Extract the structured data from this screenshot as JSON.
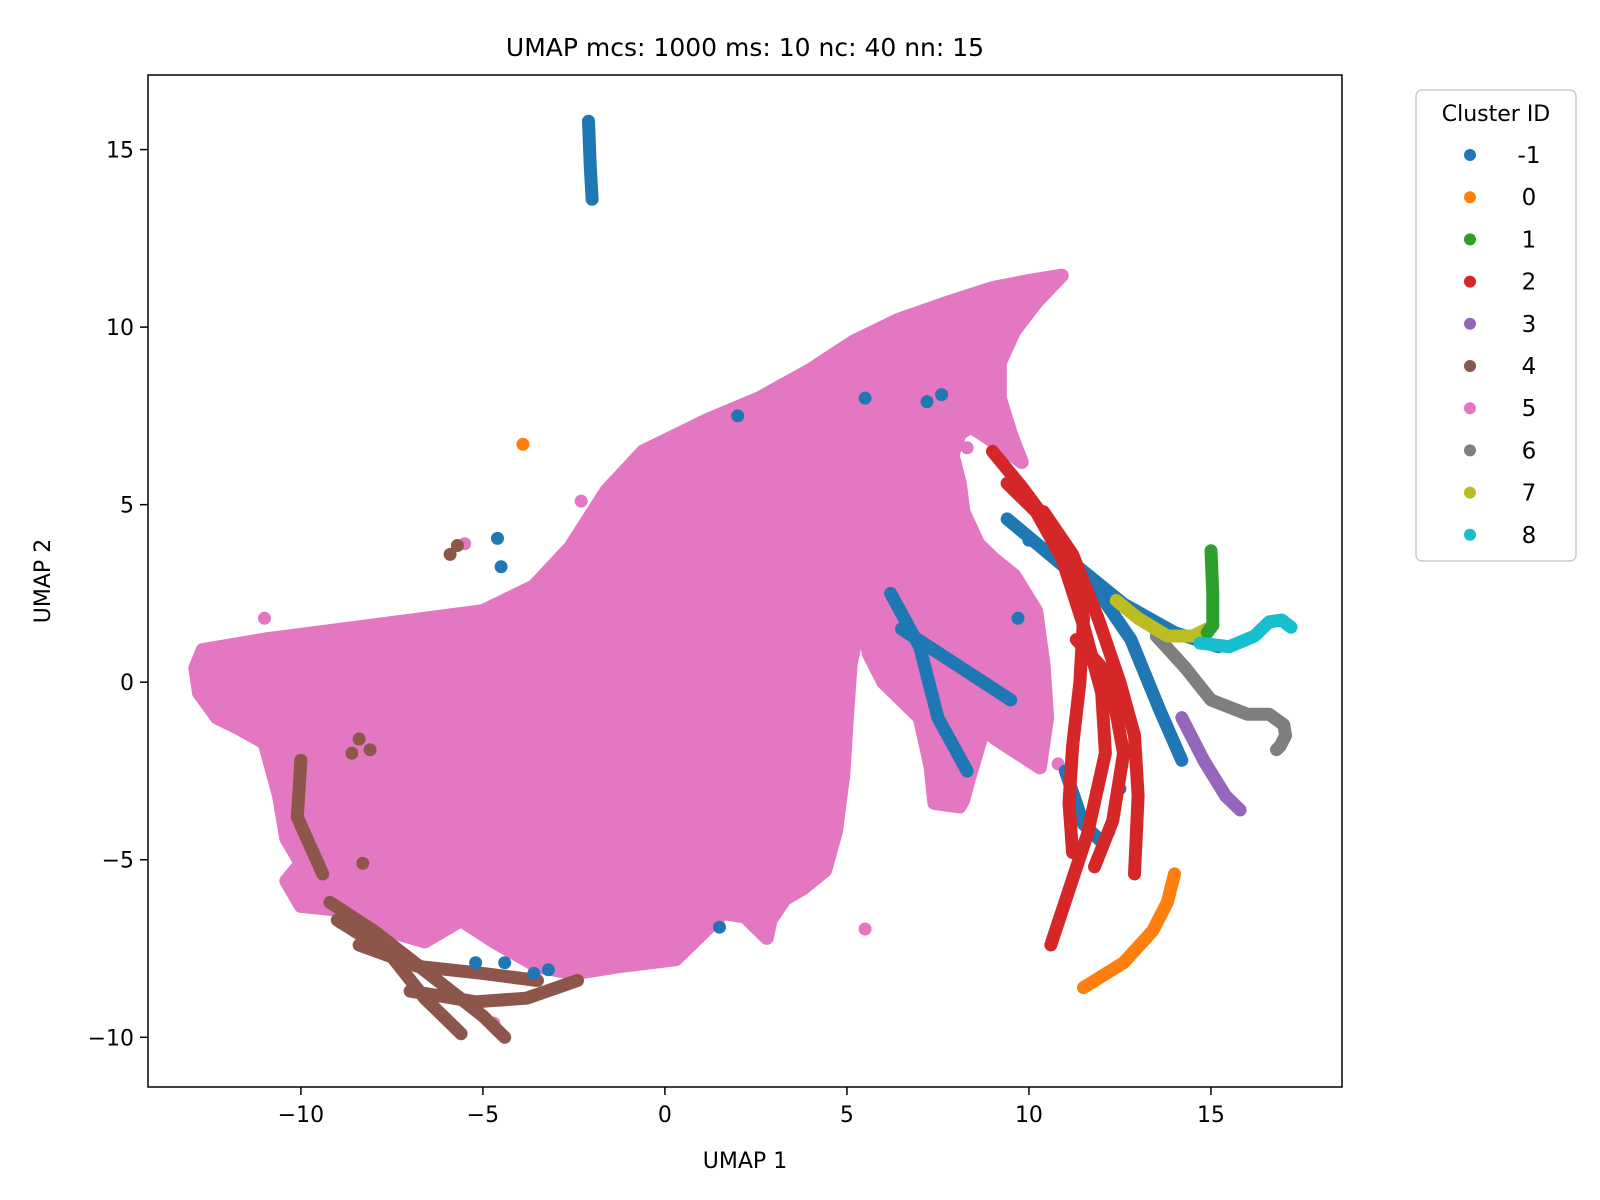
{
  "chart_data": {
    "type": "scatter",
    "title": "UMAP mcs: 1000 ms: 10 nc: 40 nn: 15",
    "xlabel": "UMAP 1",
    "ylabel": "UMAP 2",
    "xlim": [
      -14.2,
      18.6
    ],
    "ylim": [
      -11.4,
      17.1
    ],
    "xticks": [
      -10,
      -5,
      0,
      5,
      10,
      15
    ],
    "yticks": [
      -10,
      -5,
      0,
      5,
      10,
      15
    ],
    "xtick_labels": [
      "−10",
      "−5",
      "0",
      "5",
      "10",
      "15"
    ],
    "ytick_labels": [
      "−10",
      "−5",
      "0",
      "5",
      "10",
      "15"
    ],
    "grid": false,
    "legend": {
      "title": "Cluster ID",
      "placement": "outside-top-right"
    },
    "series": [
      {
        "name": "-1",
        "color": "#1f77b4",
        "paths": [
          [
            [
              -2.1,
              15.8
            ],
            [
              -2.05,
              14.5
            ],
            [
              -2.0,
              13.6
            ]
          ],
          [
            [
              9.4,
              4.6
            ],
            [
              10.8,
              3.4
            ],
            [
              12.0,
              2.4
            ],
            [
              12.8,
              1.2
            ],
            [
              13.6,
              -0.8
            ],
            [
              14.2,
              -2.2
            ]
          ],
          [
            [
              11.4,
              3.2
            ],
            [
              12.6,
              2.2
            ],
            [
              14.0,
              1.4
            ],
            [
              15.2,
              1.0
            ]
          ],
          [
            [
              11.0,
              -2.5
            ],
            [
              11.5,
              -4.0
            ],
            [
              12.0,
              -4.5
            ]
          ],
          [
            [
              6.2,
              2.5
            ],
            [
              7.0,
              1.0
            ],
            [
              7.5,
              -1.0
            ],
            [
              8.3,
              -2.5
            ]
          ],
          [
            [
              6.5,
              1.5
            ],
            [
              8.0,
              0.5
            ],
            [
              9.5,
              -0.5
            ]
          ]
        ],
        "points": [
          [
            -4.6,
            4.05
          ],
          [
            -4.5,
            3.25
          ],
          [
            2.0,
            7.5
          ],
          [
            1.5,
            -6.9
          ],
          [
            5.5,
            8.0
          ],
          [
            -5.2,
            -7.9
          ],
          [
            -4.4,
            -7.9
          ],
          [
            -3.2,
            -8.1
          ],
          [
            10.0,
            4.0
          ],
          [
            9.7,
            1.8
          ],
          [
            12.5,
            -3.0
          ],
          [
            12.2,
            -4.2
          ],
          [
            -3.6,
            -8.2
          ],
          [
            7.2,
            7.9
          ],
          [
            7.6,
            8.1
          ]
        ]
      },
      {
        "name": "0",
        "color": "#ff7f0e",
        "paths": [
          [
            [
              11.5,
              -8.6
            ],
            [
              12.6,
              -7.9
            ],
            [
              13.4,
              -7.0
            ],
            [
              13.8,
              -6.2
            ],
            [
              14.0,
              -5.4
            ]
          ]
        ],
        "points": [
          [
            -3.9,
            6.7
          ]
        ]
      },
      {
        "name": "1",
        "color": "#2ca02c",
        "paths": [
          [
            [
              15.0,
              3.7
            ],
            [
              15.05,
              2.5
            ],
            [
              15.05,
              1.6
            ],
            [
              14.9,
              1.4
            ]
          ]
        ],
        "points": []
      },
      {
        "name": "2",
        "color": "#d62728",
        "paths": [
          [
            [
              9.0,
              6.5
            ],
            [
              9.8,
              5.5
            ],
            [
              10.6,
              4.4
            ],
            [
              11.2,
              3.2
            ],
            [
              11.5,
              1.8
            ],
            [
              11.4,
              0.0
            ],
            [
              11.2,
              -1.8
            ],
            [
              11.1,
              -3.4
            ],
            [
              11.2,
              -4.8
            ]
          ],
          [
            [
              9.4,
              5.6
            ],
            [
              10.2,
              4.8
            ],
            [
              10.9,
              3.5
            ],
            [
              11.5,
              1.6
            ],
            [
              12.0,
              -0.3
            ],
            [
              12.1,
              -2.0
            ],
            [
              11.6,
              -4.3
            ],
            [
              10.6,
              -7.4
            ]
          ],
          [
            [
              10.4,
              4.8
            ],
            [
              11.2,
              3.6
            ],
            [
              11.9,
              1.8
            ],
            [
              12.5,
              0.0
            ],
            [
              12.9,
              -1.5
            ],
            [
              13.0,
              -3.2
            ],
            [
              12.9,
              -5.4
            ]
          ],
          [
            [
              11.3,
              1.2
            ],
            [
              12.2,
              0.2
            ],
            [
              12.6,
              -2.0
            ],
            [
              12.3,
              -3.9
            ],
            [
              11.8,
              -5.2
            ]
          ]
        ],
        "points": []
      },
      {
        "name": "3",
        "color": "#9467bd",
        "paths": [
          [
            [
              14.2,
              -1.0
            ],
            [
              14.8,
              -2.2
            ],
            [
              15.4,
              -3.2
            ],
            [
              15.8,
              -3.6
            ]
          ]
        ],
        "points": []
      },
      {
        "name": "4",
        "color": "#8c564b",
        "paths": [
          [
            [
              -10.0,
              -2.2
            ],
            [
              -10.1,
              -3.8
            ],
            [
              -9.4,
              -5.4
            ]
          ],
          [
            [
              -9.2,
              -6.2
            ],
            [
              -8.0,
              -7.0
            ],
            [
              -6.5,
              -8.2
            ],
            [
              -5.0,
              -9.4
            ],
            [
              -4.4,
              -10.0
            ]
          ],
          [
            [
              -9.0,
              -6.7
            ],
            [
              -7.6,
              -7.6
            ],
            [
              -6.6,
              -8.9
            ],
            [
              -5.6,
              -9.9
            ]
          ],
          [
            [
              -7.0,
              -8.7
            ],
            [
              -5.2,
              -9.0
            ],
            [
              -3.8,
              -8.9
            ],
            [
              -2.4,
              -8.4
            ]
          ],
          [
            [
              -8.4,
              -7.4
            ],
            [
              -6.8,
              -8.0
            ],
            [
              -5.0,
              -8.2
            ],
            [
              -3.5,
              -8.4
            ]
          ]
        ],
        "points": [
          [
            -5.9,
            3.6
          ],
          [
            -5.7,
            3.85
          ],
          [
            -8.4,
            -1.6
          ],
          [
            -8.1,
            -1.9
          ],
          [
            -8.6,
            -2.0
          ],
          [
            -8.3,
            -5.1
          ]
        ]
      },
      {
        "name": "5",
        "color": "#e377c2",
        "paths": [],
        "points": [
          [
            -2.3,
            5.1
          ],
          [
            -11.0,
            1.8
          ],
          [
            -5.5,
            3.9
          ],
          [
            5.5,
            -6.95
          ],
          [
            8.3,
            6.6
          ],
          [
            10.3,
            -2.2
          ],
          [
            10.8,
            -2.3
          ],
          [
            -10.2,
            -5.5
          ],
          [
            -4.7,
            -9.6
          ],
          [
            2.8,
            -7.0
          ]
        ],
        "regions": [
          [
            [
              -12.7,
              0.9
            ],
            [
              -11.0,
              1.2
            ],
            [
              -8.0,
              1.6
            ],
            [
              -5.0,
              2.0
            ],
            [
              -3.6,
              2.7
            ],
            [
              -2.6,
              3.8
            ],
            [
              -1.6,
              5.4
            ],
            [
              -0.6,
              6.5
            ],
            [
              1.2,
              7.4
            ],
            [
              2.6,
              8.0
            ],
            [
              4.0,
              8.8
            ],
            [
              5.2,
              9.6
            ],
            [
              6.4,
              10.2
            ],
            [
              7.8,
              10.7
            ],
            [
              9.0,
              11.1
            ],
            [
              10.0,
              11.3
            ],
            [
              10.9,
              11.45
            ],
            [
              10.2,
              10.7
            ],
            [
              9.6,
              9.9
            ],
            [
              9.2,
              9.0
            ],
            [
              9.2,
              8.0
            ],
            [
              9.5,
              7.0
            ],
            [
              9.8,
              6.2
            ],
            [
              9.0,
              6.8
            ],
            [
              8.4,
              7.2
            ],
            [
              8.1,
              7.0
            ],
            [
              7.9,
              6.4
            ],
            [
              8.1,
              5.6
            ],
            [
              8.2,
              4.8
            ],
            [
              8.6,
              3.9
            ],
            [
              9.0,
              3.5
            ],
            [
              9.6,
              3.0
            ],
            [
              10.2,
              2.0
            ],
            [
              10.4,
              0.5
            ],
            [
              10.5,
              -1.0
            ],
            [
              10.3,
              -2.4
            ],
            [
              9.4,
              -1.8
            ],
            [
              9.1,
              -1.6
            ],
            [
              8.6,
              -1.2
            ],
            [
              8.7,
              -1.5
            ],
            [
              8.3,
              -2.9
            ],
            [
              8.2,
              -3.3
            ],
            [
              8.1,
              -3.5
            ],
            [
              7.4,
              -3.4
            ],
            [
              7.3,
              -2.4
            ],
            [
              7.0,
              -1.0
            ],
            [
              6.6,
              -0.6
            ],
            [
              6.0,
              0.0
            ],
            [
              5.6,
              0.8
            ],
            [
              5.4,
              2.0
            ],
            [
              5.1,
              0.5
            ],
            [
              5.0,
              -1.0
            ],
            [
              4.9,
              -2.6
            ],
            [
              4.7,
              -4.2
            ],
            [
              4.4,
              -5.3
            ],
            [
              3.8,
              -5.8
            ],
            [
              3.3,
              -6.1
            ],
            [
              2.9,
              -6.7
            ],
            [
              2.8,
              -7.2
            ],
            [
              2.2,
              -6.6
            ],
            [
              1.6,
              -6.5
            ],
            [
              0.9,
              -7.2
            ],
            [
              0.3,
              -7.8
            ],
            [
              -1.3,
              -8.0
            ],
            [
              -2.5,
              -8.2
            ],
            [
              -3.5,
              -8.0
            ],
            [
              -4.7,
              -7.3
            ],
            [
              -5.6,
              -6.7
            ],
            [
              -6.6,
              -7.3
            ],
            [
              -7.6,
              -7.0
            ],
            [
              -9.0,
              -6.4
            ],
            [
              -10.0,
              -6.3
            ],
            [
              -10.4,
              -5.6
            ],
            [
              -10.0,
              -5.1
            ],
            [
              -10.4,
              -4.4
            ],
            [
              -10.6,
              -3.2
            ],
            [
              -11.0,
              -1.7
            ],
            [
              -11.7,
              -1.3
            ],
            [
              -12.3,
              -1.0
            ],
            [
              -12.8,
              -0.3
            ],
            [
              -12.9,
              0.4
            ]
          ]
        ]
      },
      {
        "name": "6",
        "color": "#7f7f7f",
        "paths": [
          [
            [
              13.5,
              1.3
            ],
            [
              14.3,
              0.4
            ],
            [
              15.0,
              -0.5
            ],
            [
              16.0,
              -0.9
            ],
            [
              16.6,
              -0.9
            ],
            [
              17.0,
              -1.2
            ],
            [
              17.05,
              -1.5
            ],
            [
              16.9,
              -1.8
            ],
            [
              16.8,
              -1.9
            ]
          ]
        ],
        "points": []
      },
      {
        "name": "7",
        "color": "#bcbd22",
        "paths": [
          [
            [
              12.4,
              2.3
            ],
            [
              13.0,
              1.8
            ],
            [
              13.8,
              1.3
            ],
            [
              14.5,
              1.3
            ],
            [
              14.9,
              1.5
            ]
          ]
        ],
        "points": []
      },
      {
        "name": "8",
        "color": "#17becf",
        "paths": [
          [
            [
              14.7,
              1.1
            ],
            [
              15.5,
              1.0
            ],
            [
              16.2,
              1.3
            ],
            [
              16.6,
              1.7
            ],
            [
              16.95,
              1.75
            ],
            [
              17.2,
              1.55
            ]
          ]
        ],
        "points": []
      }
    ]
  }
}
